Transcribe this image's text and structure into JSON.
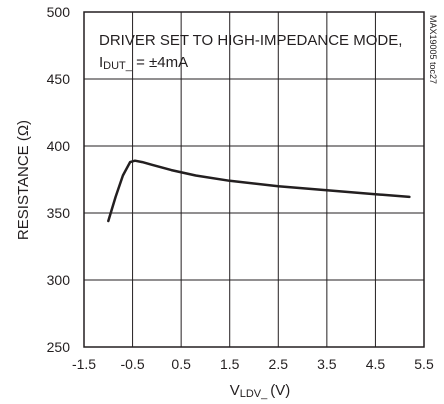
{
  "chart_data": {
    "type": "line",
    "xlabel": "V",
    "xlabel_sub": "LDV_",
    "xlabel_unit": "(V)",
    "ylabel": "RESISTANCE (Ω)",
    "xlim": [
      -1.5,
      5.5
    ],
    "ylim": [
      250,
      500
    ],
    "x_ticks": [
      "-1.5",
      "-0.5",
      "0.5",
      "1.5",
      "2.5",
      "3.5",
      "4.5",
      "5.5"
    ],
    "y_ticks": [
      "250",
      "300",
      "350",
      "400",
      "450",
      "500"
    ],
    "grid": true,
    "annotation_line1": "DRIVER SET TO HIGH-IMPEDANCE MODE,",
    "annotation_line2_prefix": "I",
    "annotation_line2_sub": "DUT_",
    "annotation_line2_suffix": " = ±4mA",
    "side_code": "MAX19005 toc27",
    "series": [
      {
        "x": [
          -1.0,
          -0.85,
          -0.7,
          -0.55,
          -0.45,
          -0.3,
          -0.1,
          0.3,
          0.8,
          1.5,
          2.5,
          3.5,
          4.5,
          5.2
        ],
        "y": [
          344,
          362,
          378,
          388,
          389,
          388,
          386,
          382,
          378,
          374,
          370,
          367,
          364,
          362
        ]
      }
    ]
  }
}
